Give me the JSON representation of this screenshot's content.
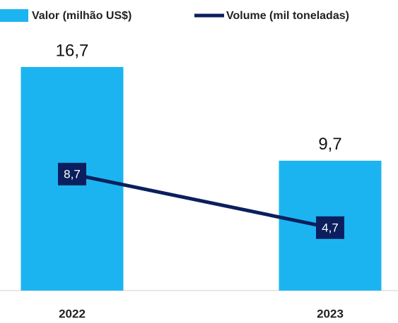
{
  "chart_data": {
    "type": "bar",
    "categories": [
      "2022",
      "2023"
    ],
    "series": [
      {
        "name": "Valor (milhão US$)",
        "color": "#1cb4f0",
        "values": [
          16.7,
          9.7
        ],
        "value_labels": [
          "16,7",
          "9,7"
        ]
      },
      {
        "name": "Volume (mil toneladas)",
        "type": "line",
        "color": "#0b1f5e",
        "values": [
          8.7,
          4.7
        ],
        "value_labels": [
          "8,7",
          "4,7"
        ]
      }
    ],
    "legend": "top"
  }
}
